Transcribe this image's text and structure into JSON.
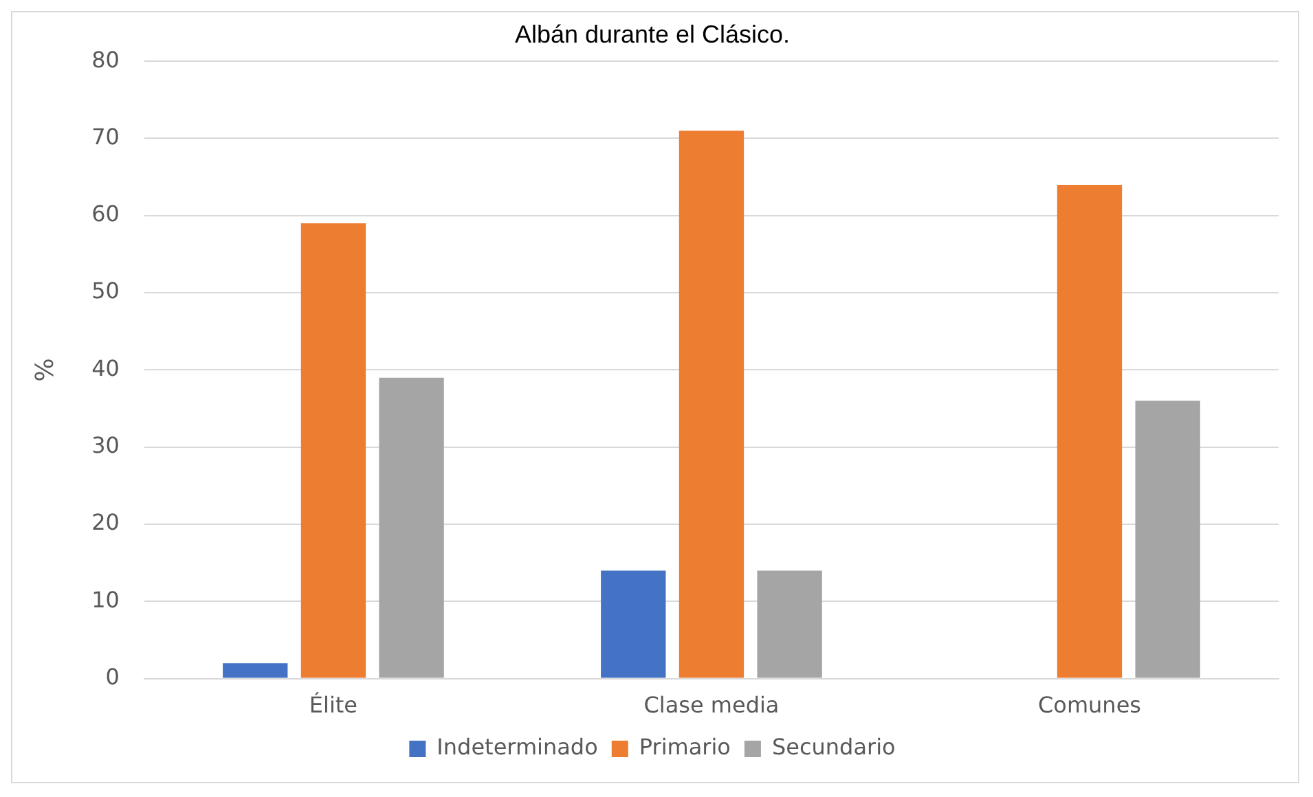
{
  "chart_data": {
    "type": "bar",
    "title": "Albán durante el Clásico.",
    "ylabel": "%",
    "categories": [
      "Élite",
      "Clase media",
      "Comunes"
    ],
    "series": [
      {
        "name": "Indeterminado",
        "color": "#4472c4",
        "values": [
          2,
          14,
          0
        ]
      },
      {
        "name": "Primario",
        "color": "#ed7d31",
        "values": [
          59,
          71,
          64
        ]
      },
      {
        "name": "Secundario",
        "color": "#a5a5a5",
        "values": [
          39,
          14,
          36
        ]
      }
    ],
    "ylim": [
      0,
      80
    ],
    "yticks": [
      0,
      10,
      20,
      30,
      40,
      50,
      60,
      70,
      80
    ],
    "grid": "y",
    "legend": "bottom"
  }
}
